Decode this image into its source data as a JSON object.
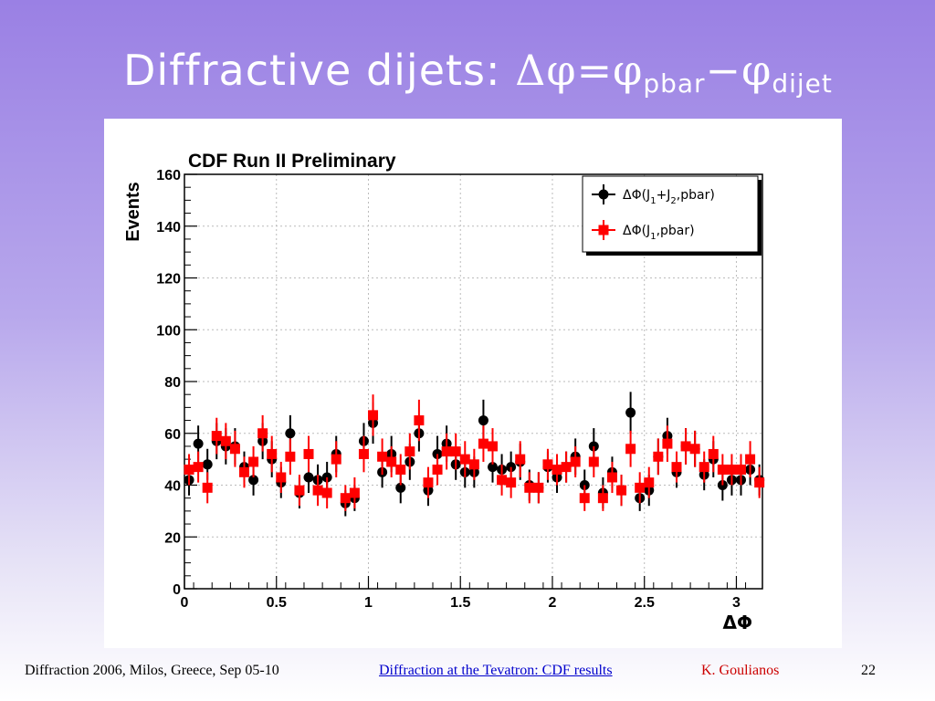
{
  "slide": {
    "title_main": "Diffractive dijets: ",
    "title_delta": "Δφ=φ",
    "title_sub1": "pbar",
    "title_minus": "−φ",
    "title_sub2": "dijet"
  },
  "footer": {
    "conference": "Diffraction 2006, Milos, Greece, Sep 05-10",
    "link_text": "Diffraction at the Tevatron: CDF results",
    "author": "K. Goulianos",
    "page_number": "22"
  },
  "chart_data": {
    "type": "scatter",
    "title": "CDF Run II Preliminary",
    "xlabel": "ΔΦ",
    "ylabel": "Events",
    "xlim": [
      0,
      3.1416
    ],
    "ylim": [
      0,
      160
    ],
    "xticks": [
      0,
      0.5,
      1,
      1.5,
      2,
      2.5,
      3
    ],
    "xtick_labels": [
      "0",
      "0.5",
      "1",
      "1.5",
      "2",
      "2.5",
      "3"
    ],
    "yticks": [
      0,
      20,
      40,
      60,
      80,
      100,
      120,
      140,
      160
    ],
    "ytick_labels": [
      "0",
      "20",
      "40",
      "60",
      "80",
      "100",
      "120",
      "140",
      "160"
    ],
    "grid": true,
    "legend_position": "top-right",
    "x": [
      0.05,
      0.15,
      0.25,
      0.35,
      0.45,
      0.55,
      0.65,
      0.75,
      0.85,
      0.95,
      1.05,
      1.15,
      1.25,
      1.35,
      1.45,
      1.55,
      1.65,
      1.75,
      1.85,
      1.95,
      2.05,
      2.15,
      2.25,
      2.35,
      2.45,
      2.55,
      2.65,
      2.75,
      2.85,
      2.95,
      3.05
    ],
    "series": [
      {
        "name_main": "ΔΦ(J",
        "name_sub1": "1",
        "name_mid": "+J",
        "name_sub2": "2",
        "name_end": ",pbar)",
        "color": "#000000",
        "marker": "circle",
        "x": [
          0.025,
          0.075,
          0.125,
          0.175,
          0.225,
          0.275,
          0.325,
          0.375,
          0.425,
          0.475,
          0.525,
          0.575,
          0.625,
          0.675,
          0.725,
          0.775,
          0.825,
          0.875,
          0.925,
          0.975,
          1.025,
          1.075,
          1.125,
          1.175,
          1.225,
          1.275,
          1.325,
          1.375,
          1.425,
          1.475,
          1.525,
          1.575,
          1.625,
          1.675,
          1.725,
          1.775,
          1.825,
          1.875,
          1.925,
          1.975,
          2.025,
          2.075,
          2.125,
          2.175,
          2.225,
          2.275,
          2.325,
          2.375,
          2.425,
          2.475,
          2.525,
          2.575,
          2.625,
          2.675,
          2.725,
          2.775,
          2.825,
          2.875,
          2.925,
          2.975,
          3.025,
          3.075,
          3.125
        ],
        "values": [
          42,
          56,
          48,
          57,
          55,
          55,
          47,
          42,
          57,
          50,
          41,
          60,
          37,
          43,
          42,
          43,
          52,
          33,
          35,
          57,
          64,
          45,
          52,
          39,
          49,
          60,
          38,
          52,
          56,
          48,
          45,
          45,
          65,
          47,
          46,
          47,
          49,
          40,
          39,
          47,
          43,
          47,
          51,
          40,
          55,
          37,
          45,
          38,
          68,
          35,
          38,
          51,
          59,
          45,
          55,
          54,
          44,
          50,
          40,
          42,
          42,
          46,
          42
        ],
        "errors": [
          6,
          7,
          6,
          7,
          7,
          7,
          6,
          6,
          7,
          7,
          6,
          7,
          6,
          6,
          6,
          6,
          7,
          5,
          5,
          7,
          8,
          6,
          7,
          6,
          7,
          7,
          6,
          7,
          7,
          6,
          6,
          6,
          8,
          6,
          6,
          6,
          7,
          6,
          6,
          6,
          6,
          6,
          7,
          6,
          7,
          6,
          6,
          6,
          8,
          5,
          6,
          7,
          7,
          6,
          7,
          7,
          6,
          7,
          6,
          6,
          6,
          6,
          6
        ]
      },
      {
        "name_main": "ΔΦ(J",
        "name_sub1": "1",
        "name_end": ",pbar)",
        "color": "#ff0000",
        "marker": "square",
        "x": [
          0.025,
          0.075,
          0.125,
          0.175,
          0.225,
          0.275,
          0.325,
          0.375,
          0.425,
          0.475,
          0.525,
          0.575,
          0.625,
          0.675,
          0.725,
          0.775,
          0.825,
          0.875,
          0.925,
          0.975,
          1.025,
          1.075,
          1.125,
          1.175,
          1.225,
          1.275,
          1.325,
          1.375,
          1.425,
          1.475,
          1.525,
          1.575,
          1.625,
          1.675,
          1.725,
          1.775,
          1.825,
          1.875,
          1.925,
          1.975,
          2.025,
          2.075,
          2.125,
          2.175,
          2.225,
          2.275,
          2.325,
          2.375,
          2.425,
          2.475,
          2.525,
          2.575,
          2.625,
          2.675,
          2.725,
          2.775,
          2.825,
          2.875,
          2.925,
          2.975,
          3.025,
          3.075,
          3.125
        ],
        "values": [
          46,
          47,
          39,
          59,
          57,
          54,
          45,
          49,
          60,
          52,
          43,
          51,
          38,
          52,
          38,
          37,
          50,
          35,
          37,
          52,
          67,
          51,
          49,
          46,
          53,
          65,
          41,
          46,
          53,
          53,
          50,
          48,
          56,
          55,
          42,
          41,
          50,
          39,
          39,
          48,
          46,
          47,
          49,
          35,
          49,
          35,
          43,
          38,
          54,
          39,
          41,
          51,
          56,
          47,
          55,
          54,
          47,
          52,
          46,
          46,
          46,
          50,
          41
        ],
        "errors": [
          6,
          6,
          6,
          7,
          7,
          7,
          6,
          6,
          7,
          7,
          6,
          7,
          6,
          7,
          6,
          6,
          7,
          5,
          6,
          7,
          8,
          7,
          6,
          6,
          7,
          8,
          6,
          6,
          7,
          7,
          7,
          6,
          7,
          7,
          6,
          6,
          7,
          6,
          6,
          6,
          6,
          6,
          6,
          5,
          6,
          5,
          6,
          6,
          7,
          6,
          6,
          7,
          7,
          6,
          7,
          7,
          6,
          7,
          6,
          6,
          6,
          7,
          6
        ]
      }
    ]
  }
}
